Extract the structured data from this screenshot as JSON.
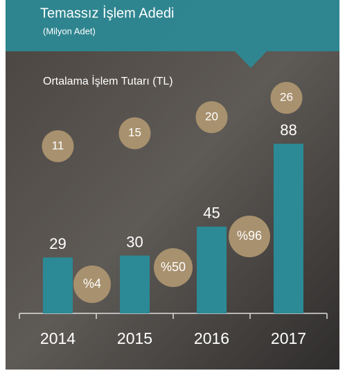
{
  "chart_data": {
    "type": "bar",
    "title": "Temassız İşlem Adedi",
    "subtitle": "(Milyon Adet)",
    "secondary_label": "Ortalama İşlem Tutarı (TL)",
    "categories": [
      "2014",
      "2015",
      "2016",
      "2017"
    ],
    "values": [
      29,
      30,
      45,
      88
    ],
    "color": "#2b8a96",
    "average_amount": {
      "values": [
        11,
        15,
        20,
        26
      ],
      "color": "#a8916e"
    },
    "growth": {
      "values": [
        4,
        50,
        96
      ],
      "value_labels": [
        "%4",
        "%50",
        "%96"
      ],
      "color": "#a8916e"
    }
  }
}
